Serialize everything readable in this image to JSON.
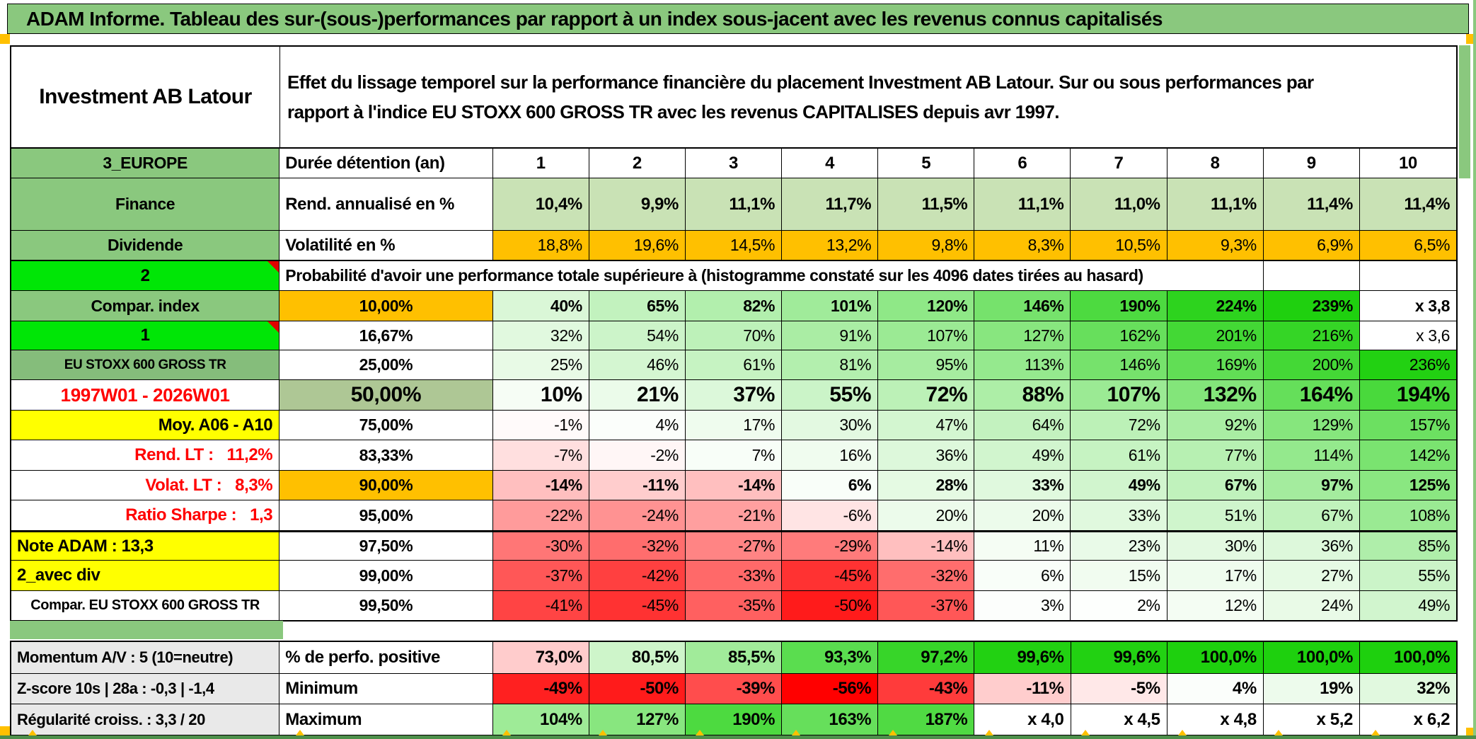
{
  "title": "ADAM Informe. Tableau des sur-(sous-)performances par rapport à un index sous-jacent avec les revenus connus capitalisés",
  "header": {
    "portfolio": "Investment AB Latour",
    "description_line1": "Effet du lissage temporel sur la performance financière du placement Investment AB Latour. Sur ou sous performances par",
    "description_line2": "rapport à l'indice EU STOXX 600 GROSS TR avec les revenus CAPITALISES depuis avr 1997."
  },
  "colors": {
    "title_green": "#8ac87e",
    "label_green": "#8ac87e",
    "label_green_muted": "#85bd7b",
    "bright_green": "#00e606",
    "orange": "#ffc000",
    "yellow": "#ffff00",
    "gray": "#e9e9e9",
    "olive": "#aec795",
    "red_text": "#ff0000",
    "heat_green_end": "#1ed00e",
    "heat_red_end": "#ff0000"
  },
  "heat_scale": {
    "green_max": 240,
    "red_max": 56,
    "perfo_mid": 75,
    "perfo_green_span": 25,
    "perfo_red_span": 10
  },
  "main_table": {
    "rows": [
      {
        "label": {
          "text": "3_EUROPE",
          "bg": "#8ac87e",
          "align": "c",
          "size": 23
        },
        "col2": {
          "text": "Durée détention (an)",
          "bg": "#ffffff",
          "align": "l",
          "size": 24
        },
        "cells": {
          "values": [
            "1",
            "2",
            "3",
            "4",
            "5",
            "6",
            "7",
            "8",
            "9",
            "10"
          ],
          "bg": "#ffffff",
          "align": "c",
          "size": 24,
          "bold": true
        }
      },
      {
        "label": {
          "text": "Finance",
          "bg": "#8ac87e",
          "align": "c",
          "size": 23
        },
        "col2": {
          "text": "Rend. annualisé en %",
          "bg": "#ffffff",
          "align": "l",
          "size": 24
        },
        "cells": {
          "values": [
            "10,4%",
            "9,9%",
            "11,1%",
            "11,7%",
            "11,5%",
            "11,1%",
            "11,0%",
            "11,1%",
            "11,4%",
            "11,4%"
          ],
          "bg": "#c9e2b5",
          "align": "r",
          "size": 24,
          "bold": true
        }
      },
      {
        "label": {
          "text": "Dividende",
          "bg": "#8ac87e",
          "align": "c",
          "size": 23
        },
        "col2": {
          "text": "Volatilité en %",
          "bg": "#ffffff",
          "align": "l",
          "size": 24
        },
        "cells": {
          "values": [
            "18,8%",
            "19,6%",
            "14,5%",
            "13,2%",
            "9,8%",
            "8,3%",
            "10,5%",
            "9,3%",
            "6,9%",
            "6,5%"
          ],
          "bg": "#ffc000",
          "align": "r",
          "size": 23,
          "bold": false
        },
        "thick_bottom": true
      },
      {
        "label": {
          "text": "2",
          "bg": "#00e606",
          "align": "c",
          "size": 24,
          "corner": true
        },
        "span_text": "Probabilité d'avoir une performance totale supérieure à (histogramme constaté sur les 4096 dates tirées au hasard)",
        "span_empty_cells": 2
      },
      {
        "label": {
          "text": "Compar. index",
          "bg": "#8ac87e",
          "align": "c",
          "size": 23
        },
        "col2": {
          "text": "10,00%",
          "bg": "#ffc000",
          "align": "c",
          "size": 23
        },
        "cells": {
          "values": [
            "40%",
            "65%",
            "82%",
            "101%",
            "120%",
            "146%",
            "190%",
            "224%",
            "239%",
            "x 3,8"
          ],
          "heat": [
            40,
            65,
            82,
            101,
            120,
            146,
            190,
            224,
            239,
            null
          ],
          "align": "r",
          "size": 23,
          "bold": true
        }
      },
      {
        "label": {
          "text": "1",
          "bg": "#00e606",
          "align": "c",
          "size": 24,
          "corner": true
        },
        "col2": {
          "text": "16,67%",
          "bg": "#ffffff",
          "align": "c",
          "size": 23
        },
        "cells": {
          "values": [
            "32%",
            "54%",
            "70%",
            "91%",
            "107%",
            "127%",
            "162%",
            "201%",
            "216%",
            "x 3,6"
          ],
          "heat": [
            32,
            54,
            70,
            91,
            107,
            127,
            162,
            201,
            216,
            null
          ],
          "align": "r",
          "size": 23,
          "bold": false
        }
      },
      {
        "label": {
          "text": "EU STOXX 600 GROSS TR",
          "bg": "#85bd7b",
          "align": "c",
          "size": 19
        },
        "col2": {
          "text": "25,00%",
          "bg": "#ffffff",
          "align": "c",
          "size": 23
        },
        "cells": {
          "values": [
            "25%",
            "46%",
            "61%",
            "81%",
            "95%",
            "113%",
            "146%",
            "169%",
            "200%",
            "236%"
          ],
          "heat": [
            25,
            46,
            61,
            81,
            95,
            113,
            146,
            169,
            200,
            236
          ],
          "align": "r",
          "size": 23,
          "bold": false
        }
      },
      {
        "label": {
          "text": "1997W01 - 2026W01",
          "bg": "#ffffff",
          "fg": "#ff0000",
          "align": "c",
          "size": 26
        },
        "col2": {
          "text": "50,00%",
          "bg": "#aec795",
          "align": "c",
          "size": 30
        },
        "cells": {
          "values": [
            "10%",
            "21%",
            "37%",
            "55%",
            "72%",
            "88%",
            "107%",
            "132%",
            "164%",
            "194%"
          ],
          "heat": [
            10,
            21,
            37,
            55,
            72,
            88,
            107,
            132,
            164,
            194
          ],
          "align": "r",
          "size": 30,
          "bold": true
        }
      },
      {
        "label": {
          "text": "Moy. A06 - A10",
          "bg": "#ffff00",
          "align": "r",
          "size": 24
        },
        "col2": {
          "text": "75,00%",
          "bg": "#ffffff",
          "align": "c",
          "size": 23
        },
        "cells": {
          "values": [
            "-1%",
            "4%",
            "17%",
            "30%",
            "47%",
            "64%",
            "72%",
            "92%",
            "129%",
            "157%"
          ],
          "heat": [
            -1,
            4,
            17,
            30,
            47,
            64,
            72,
            92,
            129,
            157
          ],
          "align": "r",
          "size": 23,
          "bold": false
        }
      },
      {
        "label": {
          "text": "Rend. LT :   11,2%",
          "bg": "#ffffff",
          "fg": "#ff0000",
          "align": "r",
          "size": 24
        },
        "col2": {
          "text": "83,33%",
          "bg": "#ffffff",
          "align": "c",
          "size": 23
        },
        "cells": {
          "values": [
            "-7%",
            "-2%",
            "7%",
            "16%",
            "36%",
            "49%",
            "61%",
            "77%",
            "114%",
            "142%"
          ],
          "heat": [
            -7,
            -2,
            7,
            16,
            36,
            49,
            61,
            77,
            114,
            142
          ],
          "align": "r",
          "size": 23,
          "bold": false
        }
      },
      {
        "label": {
          "text": "Volat. LT :   8,3%",
          "bg": "#ffffff",
          "fg": "#ff0000",
          "align": "r",
          "size": 24
        },
        "col2": {
          "text": "90,00%",
          "bg": "#ffc000",
          "align": "c",
          "size": 23
        },
        "cells": {
          "values": [
            "-14%",
            "-11%",
            "-14%",
            "6%",
            "28%",
            "33%",
            "49%",
            "67%",
            "97%",
            "125%"
          ],
          "heat": [
            -14,
            -11,
            -14,
            6,
            28,
            33,
            49,
            67,
            97,
            125
          ],
          "align": "r",
          "size": 23,
          "bold": true
        }
      },
      {
        "label": {
          "text": "Ratio Sharpe :   1,3",
          "bg": "#ffffff",
          "fg": "#ff0000",
          "align": "r",
          "size": 24
        },
        "col2": {
          "text": "95,00%",
          "bg": "#ffffff",
          "align": "c",
          "size": 23
        },
        "cells": {
          "values": [
            "-22%",
            "-24%",
            "-21%",
            "-6%",
            "20%",
            "20%",
            "33%",
            "51%",
            "67%",
            "108%"
          ],
          "heat": [
            -22,
            -24,
            -21,
            -6,
            20,
            20,
            33,
            51,
            67,
            108
          ],
          "align": "r",
          "size": 23,
          "bold": false
        }
      },
      {
        "label": {
          "text": "Note ADAM : 13,3",
          "bg": "#ffff00",
          "align": "l",
          "size": 24
        },
        "col2": {
          "text": "97,50%",
          "bg": "#ffffff",
          "align": "c",
          "size": 23
        },
        "cells": {
          "values": [
            "-30%",
            "-32%",
            "-27%",
            "-29%",
            "-14%",
            "11%",
            "23%",
            "30%",
            "36%",
            "85%"
          ],
          "heat": [
            -30,
            -32,
            -27,
            -29,
            -14,
            11,
            23,
            30,
            36,
            85
          ],
          "align": "r",
          "size": 23,
          "bold": false
        },
        "thick_top": true
      },
      {
        "label": {
          "text": "2_avec div",
          "bg": "#ffff00",
          "align": "l",
          "size": 24
        },
        "col2": {
          "text": "99,00%",
          "bg": "#ffffff",
          "align": "c",
          "size": 23
        },
        "cells": {
          "values": [
            "-37%",
            "-42%",
            "-33%",
            "-45%",
            "-32%",
            "6%",
            "15%",
            "17%",
            "27%",
            "55%"
          ],
          "heat": [
            -37,
            -42,
            -33,
            -45,
            -32,
            6,
            15,
            17,
            27,
            55
          ],
          "align": "r",
          "size": 23,
          "bold": false
        }
      },
      {
        "label": {
          "text": "Compar. EU STOXX 600 GROSS TR",
          "bg": "#ffffff",
          "align": "c",
          "size": 20
        },
        "col2": {
          "text": "99,50%",
          "bg": "#ffffff",
          "align": "c",
          "size": 23
        },
        "cells": {
          "values": [
            "-41%",
            "-45%",
            "-35%",
            "-50%",
            "-37%",
            "3%",
            "2%",
            "12%",
            "24%",
            "49%"
          ],
          "heat": [
            -41,
            -45,
            -35,
            -50,
            -37,
            3,
            2,
            12,
            24,
            49
          ],
          "align": "r",
          "size": 23,
          "bold": false
        }
      }
    ]
  },
  "bottom_table": {
    "rows": [
      {
        "label": {
          "text": "Momentum A/V : 5 (10=neutre)",
          "bg": "#e9e9e9",
          "align": "l",
          "size": 22
        },
        "col2": {
          "text": "% de perfo. positive",
          "bg": "#ffffff",
          "align": "l",
          "size": 24
        },
        "cells": {
          "values": [
            "73,0%",
            "80,5%",
            "85,5%",
            "93,3%",
            "97,2%",
            "99,6%",
            "99,6%",
            "100,0%",
            "100,0%",
            "100,0%"
          ],
          "heat": [
            73,
            80.5,
            85.5,
            93.3,
            97.2,
            99.6,
            99.6,
            100,
            100,
            100
          ],
          "mode": "perfo",
          "align": "r",
          "size": 24,
          "bold": true
        }
      },
      {
        "label": {
          "text": "Z-score 10s | 28a : -0,3 | -1,4",
          "bg": "#e9e9e9",
          "align": "l",
          "size": 22
        },
        "col2": {
          "text": "Minimum",
          "bg": "#ffffff",
          "align": "l",
          "size": 24
        },
        "cells": {
          "values": [
            "-49%",
            "-50%",
            "-39%",
            "-56%",
            "-43%",
            "-11%",
            "-5%",
            "4%",
            "19%",
            "32%"
          ],
          "heat": [
            -49,
            -50,
            -39,
            -56,
            -43,
            -11,
            -5,
            4,
            19,
            32
          ],
          "align": "r",
          "size": 24,
          "bold": true
        }
      },
      {
        "label": {
          "text": "Régularité croiss. : 3,3 / 20",
          "bg": "#e9e9e9",
          "align": "l",
          "size": 22
        },
        "col2": {
          "text": "Maximum",
          "bg": "#ffffff",
          "align": "l",
          "size": 24
        },
        "cells": {
          "values": [
            "104%",
            "127%",
            "190%",
            "163%",
            "187%",
            "x 4,0",
            "x 4,5",
            "x 4,8",
            "x 5,2",
            "x 6,2"
          ],
          "heat": [
            104,
            127,
            190,
            163,
            187,
            null,
            null,
            null,
            null,
            null
          ],
          "align": "r",
          "size": 24,
          "bold": true
        }
      }
    ]
  }
}
